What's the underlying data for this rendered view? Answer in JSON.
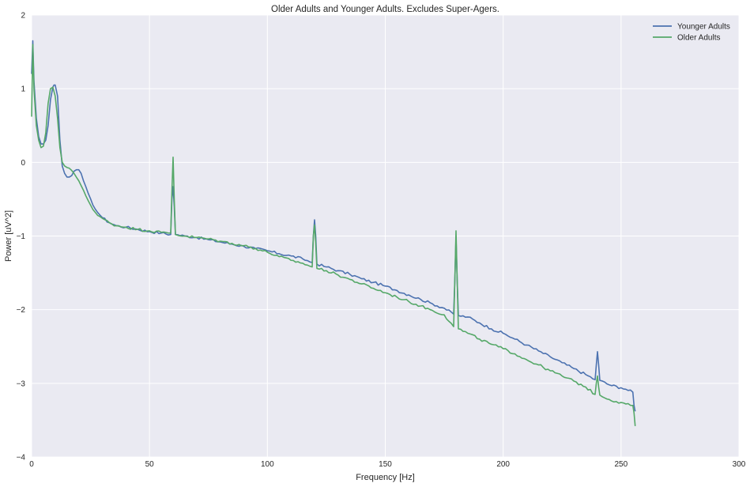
{
  "chart_data": {
    "type": "line",
    "title": "Older Adults and Younger Adults. Excludes Super-Agers.",
    "xlabel": "Frequency [Hz]",
    "ylabel": "Power [uV^2]",
    "xlim": [
      0,
      300
    ],
    "ylim": [
      -4,
      2
    ],
    "xticks": [
      0,
      50,
      100,
      150,
      200,
      250,
      300
    ],
    "yticks": [
      -4,
      -3,
      -2,
      -1,
      0,
      1,
      2
    ],
    "xtick_labels": [
      "0",
      "50",
      "100",
      "150",
      "200",
      "250",
      "300"
    ],
    "ytick_labels": [
      "−4",
      "−3",
      "−2",
      "−1",
      "0",
      "1",
      "2"
    ],
    "grid": true,
    "legend_position": "top-right",
    "background_color": "#EAEAF2",
    "series": [
      {
        "name": "Younger Adults",
        "color": "#4C72B0",
        "x": [
          0,
          0.5,
          1,
          2,
          3,
          4,
          5,
          6,
          7,
          8,
          9,
          9.5,
          10,
          11,
          12,
          13,
          14,
          15,
          16,
          17,
          18,
          19,
          20,
          21,
          22,
          24,
          26,
          28,
          30,
          33,
          36,
          40,
          45,
          50,
          55,
          59,
          59.5,
          60,
          60.5,
          61,
          65,
          70,
          75,
          80,
          85,
          90,
          95,
          100,
          105,
          110,
          115,
          119,
          119.5,
          120,
          120.5,
          121,
          125,
          130,
          135,
          140,
          145,
          150,
          155,
          160,
          165,
          170,
          175,
          179,
          179.5,
          180,
          180.5,
          181,
          185,
          190,
          195,
          200,
          205,
          210,
          215,
          220,
          225,
          230,
          235,
          239,
          239.5,
          240,
          240.5,
          241,
          245,
          250,
          252,
          255,
          255.5,
          256
        ],
        "values": [
          1.2,
          1.65,
          1.1,
          0.6,
          0.35,
          0.25,
          0.25,
          0.3,
          0.5,
          0.85,
          1.02,
          1.05,
          1.05,
          0.9,
          0.3,
          -0.05,
          -0.15,
          -0.2,
          -0.2,
          -0.18,
          -0.12,
          -0.1,
          -0.1,
          -0.15,
          -0.25,
          -0.42,
          -0.58,
          -0.68,
          -0.75,
          -0.82,
          -0.86,
          -0.88,
          -0.91,
          -0.94,
          -0.96,
          -0.98,
          -0.5,
          -0.33,
          -0.6,
          -0.98,
          -1.0,
          -1.02,
          -1.05,
          -1.08,
          -1.11,
          -1.14,
          -1.17,
          -1.2,
          -1.24,
          -1.27,
          -1.31,
          -1.36,
          -1.0,
          -0.78,
          -1.0,
          -1.38,
          -1.42,
          -1.47,
          -1.52,
          -1.58,
          -1.63,
          -1.68,
          -1.74,
          -1.8,
          -1.86,
          -1.92,
          -1.98,
          -2.06,
          -1.6,
          -1.02,
          -1.6,
          -2.08,
          -2.1,
          -2.18,
          -2.26,
          -2.32,
          -2.4,
          -2.48,
          -2.56,
          -2.64,
          -2.72,
          -2.8,
          -2.88,
          -2.95,
          -2.75,
          -2.57,
          -2.75,
          -2.96,
          -3.02,
          -3.06,
          -3.08,
          -3.12,
          -3.3,
          -3.38
        ]
      },
      {
        "name": "Older Adults",
        "color": "#55A868",
        "x": [
          0,
          0.5,
          1,
          2,
          3,
          4,
          5,
          6,
          7,
          8,
          9,
          10,
          11,
          12,
          13,
          14,
          15,
          16,
          18,
          20,
          22,
          24,
          26,
          28,
          30,
          33,
          36,
          40,
          45,
          50,
          55,
          59,
          59.5,
          60,
          60.5,
          61,
          65,
          70,
          75,
          80,
          85,
          90,
          95,
          100,
          105,
          110,
          115,
          119,
          119.5,
          120,
          120.5,
          121,
          125,
          130,
          135,
          140,
          145,
          150,
          155,
          160,
          165,
          170,
          175,
          179,
          179.5,
          180,
          180.5,
          181,
          185,
          190,
          195,
          200,
          205,
          210,
          215,
          220,
          225,
          230,
          235,
          239,
          239.5,
          240,
          240.5,
          241,
          245,
          250,
          252,
          255,
          255.5,
          256
        ],
        "values": [
          0.62,
          1.6,
          1.0,
          0.5,
          0.3,
          0.2,
          0.22,
          0.4,
          0.8,
          1.0,
          1.02,
          0.9,
          0.6,
          0.2,
          0.0,
          -0.05,
          -0.07,
          -0.08,
          -0.15,
          -0.25,
          -0.38,
          -0.52,
          -0.64,
          -0.72,
          -0.76,
          -0.82,
          -0.86,
          -0.88,
          -0.91,
          -0.93,
          -0.95,
          -0.96,
          -0.4,
          0.07,
          -0.5,
          -0.98,
          -1.0,
          -1.02,
          -1.04,
          -1.07,
          -1.1,
          -1.13,
          -1.17,
          -1.22,
          -1.28,
          -1.33,
          -1.37,
          -1.42,
          -1.0,
          -0.85,
          -1.1,
          -1.44,
          -1.47,
          -1.53,
          -1.59,
          -1.65,
          -1.71,
          -1.77,
          -1.83,
          -1.89,
          -1.95,
          -2.01,
          -2.07,
          -2.23,
          -1.6,
          -0.93,
          -1.6,
          -2.26,
          -2.32,
          -2.4,
          -2.47,
          -2.53,
          -2.6,
          -2.68,
          -2.75,
          -2.83,
          -2.9,
          -2.97,
          -3.05,
          -3.15,
          -3.0,
          -2.9,
          -3.05,
          -3.16,
          -3.22,
          -3.26,
          -3.28,
          -3.3,
          -3.4,
          -3.58
        ]
      }
    ]
  }
}
